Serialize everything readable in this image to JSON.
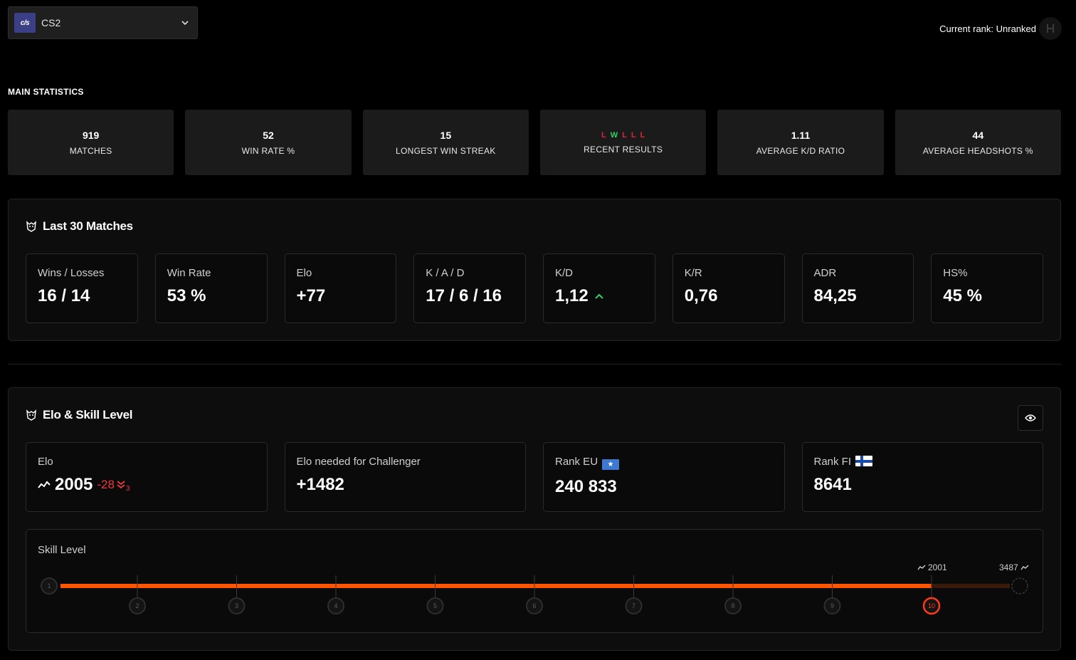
{
  "header": {
    "game_logo_text": "c/s",
    "game_label": "CS2",
    "rank_text": "Current rank: Unranked"
  },
  "main_statistics": {
    "title": "MAIN STATISTICS",
    "cards": [
      {
        "value": "919",
        "label": "MATCHES"
      },
      {
        "value": "52",
        "label": "WIN RATE %"
      },
      {
        "value": "15",
        "label": "LONGEST WIN STREAK"
      },
      {
        "value": "",
        "label": "RECENT RESULTS",
        "results": [
          "L",
          "W",
          "L",
          "L",
          "L"
        ]
      },
      {
        "value": "1.11",
        "label": "AVERAGE K/D RATIO"
      },
      {
        "value": "44",
        "label": "AVERAGE HEADSHOTS %"
      }
    ]
  },
  "last30": {
    "title": "Last 30 Matches",
    "cards": [
      {
        "title": "Wins / Losses",
        "value": "16 / 14"
      },
      {
        "title": "Win Rate",
        "value": "53 %"
      },
      {
        "title": "Elo",
        "value": "+77"
      },
      {
        "title": "K / A / D",
        "value": "17 / 6 / 16"
      },
      {
        "title": "K/D",
        "value": "1,12",
        "trend": "up"
      },
      {
        "title": "K/R",
        "value": "0,76"
      },
      {
        "title": "ADR",
        "value": "84,25"
      },
      {
        "title": "HS%",
        "value": "45 %"
      }
    ]
  },
  "elo_skill": {
    "title": "Elo & Skill Level",
    "elo": {
      "title": "Elo",
      "value": "2005",
      "change": "-28",
      "change_sub": "3"
    },
    "challenger": {
      "title": "Elo needed for Challenger",
      "value": "+1482"
    },
    "rank_eu": {
      "title": "Rank EU",
      "value": "240 833"
    },
    "rank_fi": {
      "title": "Rank FI",
      "value": "8641"
    },
    "skill": {
      "title": "Skill Level",
      "levels": [
        "1",
        "2",
        "3",
        "4",
        "5",
        "6",
        "7",
        "8",
        "9",
        "10"
      ],
      "current_level": 10,
      "current_elo_label": "2001",
      "max_elo_label": "3487",
      "colors": {
        "fill": "#ff5500",
        "remaining": "#3a1a0a",
        "current": "#ff3a1a"
      }
    }
  }
}
